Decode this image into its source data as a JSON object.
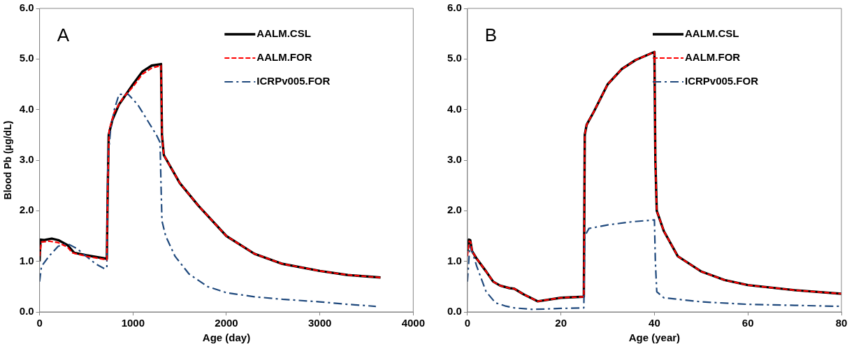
{
  "chart_data": [
    {
      "type": "line",
      "xlabel": "Age (day)",
      "ylabel": "Blood Pb (μg/dL)",
      "annotations": [
        "A"
      ],
      "legend": "top right",
      "marker": "none",
      "xlim": [
        0,
        4000
      ],
      "xticks": [
        0,
        1000,
        2000,
        3000,
        4000
      ],
      "ylim": [
        0,
        6
      ],
      "yticks": [
        {
          "value": 0,
          "label": "0.0"
        },
        {
          "value": 1,
          "label": "1.0"
        },
        {
          "value": 2,
          "label": "2.0"
        },
        {
          "value": 3,
          "label": "3.0"
        },
        {
          "value": 4,
          "label": "4.0"
        },
        {
          "value": 5,
          "label": "5.0"
        },
        {
          "value": 6,
          "label": "6.0"
        }
      ],
      "series": [
        {
          "name": "AALM.CSL",
          "color": "#000000",
          "line_style": "solid",
          "x": [
            0,
            10,
            50,
            130,
            200,
            300,
            370,
            500,
            720,
            730,
            740,
            780,
            850,
            1000,
            1100,
            1200,
            1300,
            1310,
            1330,
            1500,
            1700,
            2000,
            2300,
            2600,
            3000,
            3300,
            3650
          ],
          "values": [
            1.0,
            1.43,
            1.42,
            1.45,
            1.42,
            1.32,
            1.17,
            1.12,
            1.05,
            2.5,
            3.5,
            3.8,
            4.1,
            4.5,
            4.75,
            4.87,
            4.9,
            3.5,
            3.1,
            2.55,
            2.1,
            1.5,
            1.15,
            0.95,
            0.81,
            0.73,
            0.68
          ]
        },
        {
          "name": "AALM.FOR",
          "color": "#ff0000",
          "line_style": "dashed",
          "x": [
            0,
            20,
            100,
            200,
            300,
            350,
            500,
            720,
            730,
            745,
            800,
            900,
            1000,
            1100,
            1200,
            1300,
            1310,
            1330,
            1500,
            1700,
            2000,
            2300,
            2600,
            3000,
            3300,
            3650
          ],
          "values": [
            1.1,
            1.38,
            1.4,
            1.37,
            1.28,
            1.17,
            1.1,
            1.03,
            2.5,
            3.6,
            3.95,
            4.25,
            4.45,
            4.7,
            4.82,
            4.87,
            3.5,
            3.1,
            2.55,
            2.1,
            1.5,
            1.15,
            0.95,
            0.81,
            0.73,
            0.68
          ]
        },
        {
          "name": "ICRPv005.FOR",
          "color": "#1f497d",
          "line_style": "dotted",
          "x": [
            0,
            20,
            100,
            200,
            300,
            400,
            500,
            600,
            700,
            720,
            730,
            760,
            800,
            850,
            950,
            1050,
            1150,
            1250,
            1290,
            1300,
            1310,
            1350,
            1450,
            1600,
            1800,
            2000,
            2300,
            2600,
            3000,
            3300,
            3600
          ],
          "values": [
            0.6,
            0.9,
            1.1,
            1.3,
            1.35,
            1.25,
            1.1,
            0.95,
            0.85,
            0.88,
            3.0,
            3.6,
            4.0,
            4.3,
            4.3,
            4.1,
            3.8,
            3.5,
            3.35,
            2.5,
            1.8,
            1.5,
            1.1,
            0.75,
            0.5,
            0.38,
            0.3,
            0.25,
            0.2,
            0.15,
            0.11
          ]
        }
      ]
    },
    {
      "type": "line",
      "xlabel": "Age (year)",
      "annotations": [
        "B"
      ],
      "legend": "top right",
      "marker": "none",
      "xlim": [
        0,
        80
      ],
      "xticks": [
        0,
        20,
        40,
        60,
        80
      ],
      "ylim": [
        0,
        6
      ],
      "yticks": [
        {
          "value": 0,
          "label": "0.0"
        },
        {
          "value": 1,
          "label": "1.0"
        },
        {
          "value": 2,
          "label": "2.0"
        },
        {
          "value": 3,
          "label": "3.0"
        },
        {
          "value": 4,
          "label": "4.0"
        },
        {
          "value": 5,
          "label": "5.0"
        },
        {
          "value": 6,
          "label": "6.0"
        }
      ],
      "series": [
        {
          "name": "AALM.CSL",
          "color": "#000000",
          "line_style": "solid",
          "x": [
            0,
            0.3,
            0.6,
            1,
            2,
            4,
            5.5,
            7,
            9,
            10,
            12,
            15,
            20,
            24.9,
            25.1,
            25.5,
            27,
            30,
            33,
            36,
            40,
            40.2,
            40.5,
            42,
            45,
            50,
            55,
            60,
            70,
            80
          ],
          "values": [
            1.2,
            1.43,
            1.42,
            1.2,
            1.05,
            0.8,
            0.6,
            0.52,
            0.47,
            0.46,
            0.35,
            0.21,
            0.28,
            0.3,
            3.5,
            3.7,
            3.95,
            4.5,
            4.8,
            4.98,
            5.14,
            3.0,
            2.0,
            1.6,
            1.1,
            0.8,
            0.63,
            0.53,
            0.43,
            0.36
          ]
        },
        {
          "name": "AALM.FOR",
          "color": "#ff0000",
          "line_style": "dashed",
          "x": [
            0,
            0.4,
            0.7,
            1,
            2,
            4,
            5.5,
            7,
            9,
            10,
            12,
            15,
            20,
            24.9,
            25.1,
            25.5,
            27,
            30,
            33,
            36,
            40,
            40.2,
            40.5,
            42,
            45,
            50,
            55,
            60,
            70,
            80
          ],
          "values": [
            1.1,
            1.4,
            1.38,
            1.2,
            1.05,
            0.8,
            0.6,
            0.52,
            0.47,
            0.46,
            0.35,
            0.21,
            0.28,
            0.3,
            3.5,
            3.7,
            3.95,
            4.5,
            4.8,
            4.98,
            5.14,
            3.0,
            2.0,
            1.6,
            1.1,
            0.8,
            0.63,
            0.53,
            0.43,
            0.36
          ]
        },
        {
          "name": "ICRPv005.FOR",
          "color": "#1f497d",
          "line_style": "dotted",
          "x": [
            0,
            0.5,
            1,
            2,
            4,
            6,
            8,
            10,
            14,
            20,
            24.9,
            25.1,
            26,
            30,
            35,
            40,
            40.2,
            40.5,
            42,
            50,
            60,
            70,
            80
          ],
          "values": [
            0.6,
            1.3,
            1.2,
            0.9,
            0.4,
            0.18,
            0.12,
            0.08,
            0.05,
            0.07,
            0.08,
            1.5,
            1.65,
            1.72,
            1.78,
            1.82,
            1.0,
            0.4,
            0.28,
            0.2,
            0.15,
            0.13,
            0.11
          ]
        }
      ]
    }
  ]
}
